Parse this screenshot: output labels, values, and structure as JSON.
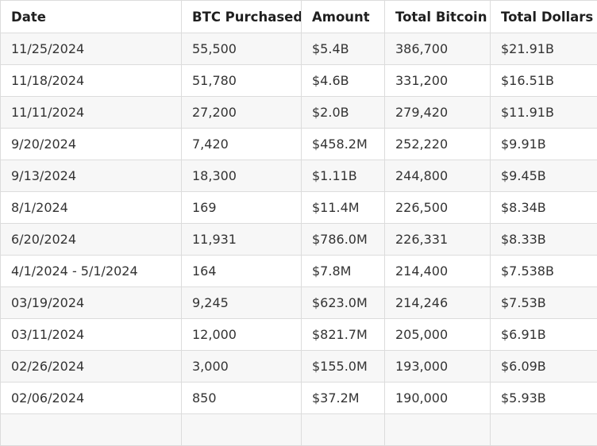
{
  "table": {
    "headers": [
      "Date",
      "BTC Purchased",
      "Amount",
      "Total Bitcoin",
      "Total Dollars"
    ],
    "rows": [
      [
        "11/25/2024",
        "55,500",
        "$5.4B",
        "386,700",
        "$21.91B"
      ],
      [
        "11/18/2024",
        "51,780",
        "$4.6B",
        "331,200",
        "$16.51B"
      ],
      [
        "11/11/2024",
        "27,200",
        "$2.0B",
        "279,420",
        "$11.91B"
      ],
      [
        "9/20/2024",
        "7,420",
        "$458.2M",
        "252,220",
        "$9.91B"
      ],
      [
        "9/13/2024",
        "18,300",
        "$1.11B",
        "244,800",
        "$9.45B"
      ],
      [
        "8/1/2024",
        "169",
        "$11.4M",
        "226,500",
        "$8.34B"
      ],
      [
        "6/20/2024",
        "11,931",
        "$786.0M",
        "226,331",
        "$8.33B"
      ],
      [
        "4/1/2024 - 5/1/2024",
        "164",
        "$7.8M",
        "214,400",
        "$7.538B"
      ],
      [
        "03/19/2024",
        "9,245",
        "$623.0M",
        "214,246",
        "$7.53B"
      ],
      [
        "03/11/2024",
        "12,000",
        "$821.7M",
        "205,000",
        "$6.91B"
      ],
      [
        "02/26/2024",
        "3,000",
        "$155.0M",
        "193,000",
        "$6.09B"
      ],
      [
        "02/06/2024",
        "850",
        "$37.2M",
        "190,000",
        "$5.93B"
      ],
      [
        "",
        "",
        "",
        "",
        ""
      ]
    ]
  }
}
